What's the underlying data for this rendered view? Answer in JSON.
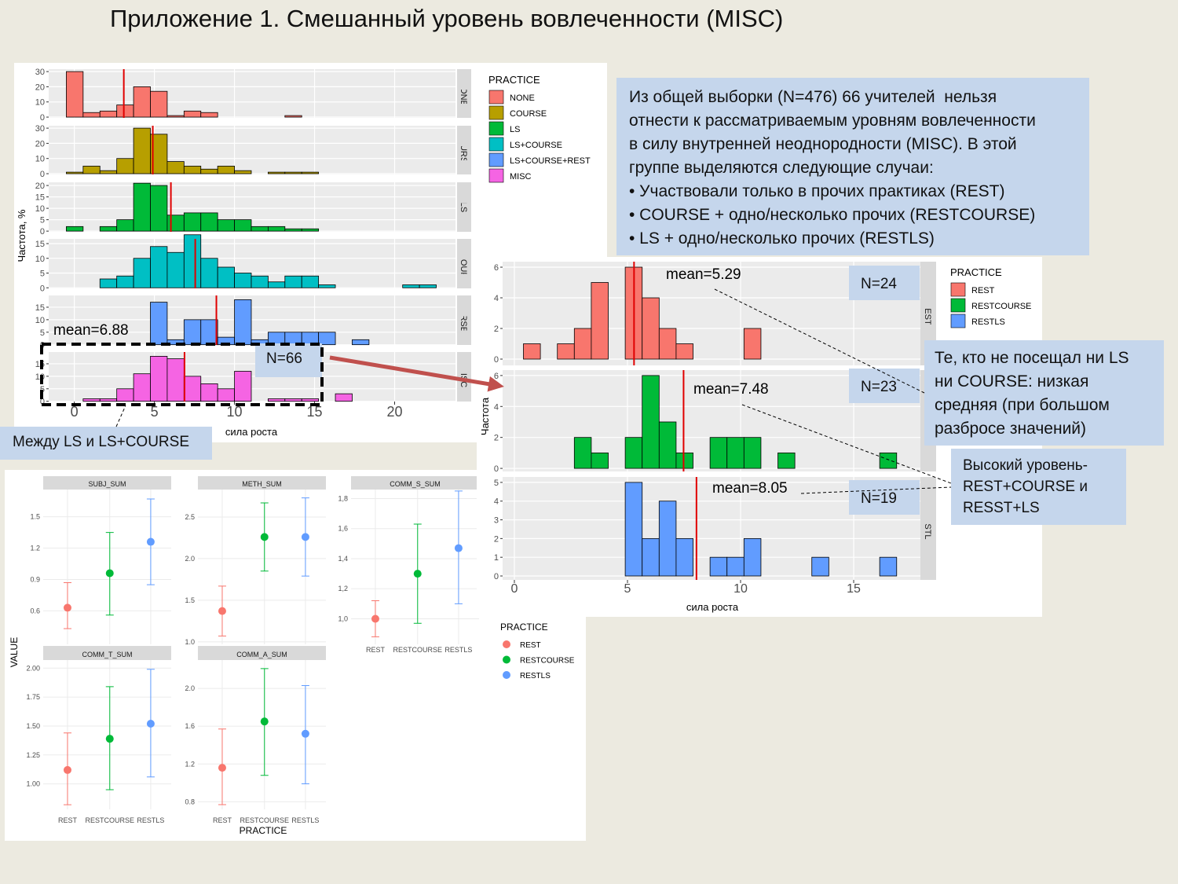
{
  "title": "Приложение 1. Смешанный уровень вовлеченности (MISC)",
  "summary": {
    "lines": [
      "Из общей выборки (N=476) 66 учителей  нельзя",
      "отнести к рассматриваемым уровням вовлеченности",
      "в силу внутренней неоднородности (MISC). В этой",
      "группе выделяются следующие случаи:",
      "• Участвовали только в прочих практиках (REST)",
      "• COURSE + одно/несколько прочих (RESTCOURSE)",
      "• LS + одно/несколько прочих (RESTLS)"
    ]
  },
  "callouts": {
    "between": "Между LS и LS+COURSE",
    "misc_n": "N=66",
    "low": {
      "lines": [
        "Те, кто не посещал ни LS",
        "ни COURSE: низкая",
        "средняя (при большом",
        "разбросе значений)"
      ]
    },
    "high": {
      "lines": [
        "Высокий уровень-",
        "REST+COURSE и",
        "RESST+LS"
      ]
    }
  },
  "chart_data": [
    {
      "type": "histogram",
      "ylabel": "Частота, %",
      "xlabel": "сила роста",
      "legend_title": "PRACTICE",
      "grid": true,
      "bins": [
        -0.5,
        0.55,
        1.6,
        2.65,
        3.7,
        4.75,
        5.8,
        6.85,
        7.9,
        8.95,
        10,
        11.05,
        12.1,
        13.15,
        14.2,
        15.25,
        16.3,
        17.35,
        18.4,
        19.45,
        20.5,
        21.55,
        22.6,
        23.65
      ],
      "xlim": [
        -1.6,
        23.8
      ],
      "xticks": [
        0,
        5,
        10,
        15,
        20
      ],
      "facets": [
        {
          "name": "NONE",
          "color": "#F8766D",
          "ylim": [
            -0.5,
            31.6
          ],
          "yticks": [
            0,
            10,
            20,
            30
          ],
          "mean": 3.09,
          "counts": [
            30,
            3,
            4,
            8,
            20,
            17,
            1,
            4,
            3,
            0,
            0,
            0,
            0,
            1,
            0,
            0,
            0,
            0,
            0,
            0,
            0,
            0,
            0
          ]
        },
        {
          "name": "COURSE",
          "color": "#B79F00",
          "ylim": [
            -0.5,
            31.6
          ],
          "yticks": [
            0,
            10,
            20,
            30
          ],
          "mean": 4.9,
          "counts": [
            1,
            5,
            2,
            10,
            30,
            26,
            8,
            5,
            3,
            5,
            2,
            0,
            1,
            1,
            1,
            0,
            0,
            0,
            0,
            0,
            0,
            0,
            0
          ]
        },
        {
          "name": "LS",
          "color": "#00BA38",
          "ylim": [
            -0.3,
            21.4
          ],
          "yticks": [
            0,
            5,
            10,
            15,
            20
          ],
          "mean": 6.03,
          "counts": [
            2,
            0,
            2,
            5,
            21,
            20,
            7,
            8,
            8,
            5,
            5,
            2,
            2,
            1,
            1,
            0,
            0,
            0,
            0,
            0,
            0,
            0,
            0
          ]
        },
        {
          "name": "LS+COURSE",
          "color": "#00BFC4",
          "ylim": [
            -0.2,
            16.6
          ],
          "yticks": [
            0,
            5,
            10,
            15
          ],
          "mean": 7.55,
          "counts": [
            0,
            0,
            3,
            4,
            10,
            14,
            12,
            18,
            10,
            7,
            5,
            4,
            2,
            4,
            4,
            1,
            0,
            0,
            0,
            0,
            1,
            1,
            0
          ]
        },
        {
          "name": "LS+COURSE+REST",
          "color": "#619CFF",
          "ylim": [
            -0.1,
            19.7
          ],
          "yticks": [
            0,
            5,
            10,
            15
          ],
          "mean": 8.87,
          "counts": [
            0,
            0,
            0,
            0,
            0,
            17,
            2,
            10,
            10,
            3,
            18,
            2,
            5,
            5,
            5,
            5,
            0,
            2,
            0,
            0,
            0,
            0,
            0
          ]
        },
        {
          "name": "MISC",
          "color": "#F564E3",
          "ylim": [
            -0.1,
            19.7
          ],
          "yticks": [
            0,
            5,
            10,
            15
          ],
          "mean": 6.88,
          "mean_label": "mean=6.88",
          "counts": [
            0,
            1,
            1,
            5,
            11,
            18,
            17,
            10,
            7,
            5,
            12,
            0,
            1,
            1,
            1,
            0,
            3,
            0,
            0,
            0,
            0,
            0,
            0
          ]
        }
      ]
    },
    {
      "type": "histogram",
      "ylabel": "Частота",
      "xlabel": "сила роста",
      "legend_title": "PRACTICE",
      "grid": true,
      "bins": [
        0.4,
        1.15,
        1.9,
        2.65,
        3.4,
        4.15,
        4.9,
        5.65,
        6.4,
        7.15,
        7.9,
        8.65,
        9.4,
        10.15,
        10.9,
        11.65,
        12.4,
        13.15,
        13.9,
        14.65,
        15.4,
        16.15,
        16.9,
        17.65
      ],
      "xlim": [
        -0.52,
        17.95
      ],
      "xticks": [
        0,
        5,
        10,
        15
      ],
      "facets": [
        {
          "name": "REST",
          "color": "#F8766D",
          "ylim": [
            -0.41,
            6.36
          ],
          "yticks": [
            0,
            2,
            4,
            6
          ],
          "mean": 5.29,
          "mean_label": "mean=5.29",
          "n_label": "N=24",
          "counts": [
            1,
            0,
            1,
            2,
            5,
            0,
            6,
            4,
            2,
            1,
            0,
            0,
            0,
            2,
            0,
            0,
            0,
            0,
            0,
            0,
            0,
            0,
            0
          ]
        },
        {
          "name": "RESTCOURSE",
          "color": "#00BA38",
          "ylim": [
            -0.2,
            6.35
          ],
          "yticks": [
            0,
            2,
            4,
            6
          ],
          "mean": 7.48,
          "mean_label": "mean=7.48",
          "n_label": "N=23",
          "counts": [
            0,
            0,
            0,
            2,
            1,
            0,
            2,
            6,
            3,
            1,
            0,
            2,
            2,
            2,
            0,
            1,
            0,
            0,
            0,
            0,
            0,
            1,
            0
          ]
        },
        {
          "name": "RESTLS",
          "color": "#619CFF",
          "ylim": [
            -0.21,
            5.29
          ],
          "yticks": [
            0,
            1,
            2,
            3,
            4,
            5
          ],
          "mean": 8.05,
          "mean_label": "mean=8.05",
          "n_label": "N=19",
          "counts": [
            0,
            0,
            0,
            0,
            0,
            0,
            5,
            2,
            4,
            2,
            0,
            1,
            1,
            2,
            0,
            0,
            0,
            1,
            0,
            0,
            0,
            1,
            0
          ]
        }
      ]
    },
    {
      "type": "pointrange",
      "ylabel": "VALUE",
      "xlabel": "PRACTICE",
      "legend_title": "PRACTICE",
      "grid": true,
      "categories": [
        "REST",
        "RESTCOURSE",
        "RESTLS"
      ],
      "colors": [
        "#F8766D",
        "#00BA38",
        "#619CFF"
      ],
      "panels": [
        {
          "name": "SUBJ_SUM",
          "ylim": [
            0.28,
            1.76
          ],
          "yticks": [
            0.6,
            0.9,
            1.2,
            1.5
          ],
          "values": [
            0.63,
            0.96,
            1.26
          ],
          "low": [
            0.43,
            0.56,
            0.85
          ],
          "high": [
            0.87,
            1.35,
            1.67
          ]
        },
        {
          "name": "METH_SUM",
          "ylim": [
            0.97,
            2.83
          ],
          "yticks": [
            {
              "value": 1,
              "label": "1.0"
            },
            1.5,
            {
              "value": 2,
              "label": "2.0"
            },
            2.5
          ],
          "values": [
            1.37,
            2.26,
            2.26
          ],
          "low": [
            1.07,
            1.85,
            1.79
          ],
          "high": [
            1.67,
            2.67,
            2.73
          ]
        },
        {
          "name": "COMM_S_SUM",
          "ylim": [
            0.83,
            1.86
          ],
          "yticks": [
            {
              "value": 1,
              "label": "1,0"
            },
            {
              "value": 1.2,
              "label": "1,2"
            },
            {
              "value": 1.4,
              "label": "1,4"
            },
            {
              "value": 1.6,
              "label": "1,6"
            },
            {
              "value": 1.8,
              "label": "1,8"
            }
          ],
          "values": [
            1,
            1.3,
            1.47
          ],
          "low": [
            0.88,
            0.97,
            1.1
          ],
          "high": [
            1.12,
            1.63,
            1.85
          ]
        },
        {
          "name": "COMM_T_SUM",
          "ylim": [
            0.78,
            2.07
          ],
          "yticks": [
            {
              "value": 1,
              "label": "1.00"
            },
            1.25,
            {
              "value": 1.5,
              "label": "1.50"
            },
            1.75,
            {
              "value": 2,
              "label": "2.00"
            }
          ],
          "values": [
            1.12,
            1.39,
            1.52
          ],
          "low": [
            0.82,
            0.95,
            1.06
          ],
          "high": [
            1.44,
            1.84,
            1.99
          ]
        },
        {
          "name": "COMM_A_SUM",
          "ylim": [
            0.72,
            2.3
          ],
          "yticks": [
            0.8,
            1.2,
            1.6,
            {
              "value": 2,
              "label": "2.0"
            }
          ],
          "values": [
            1.16,
            1.65,
            1.52
          ],
          "low": [
            0.77,
            1.08,
            0.99
          ],
          "high": [
            1.57,
            2.21,
            2.03
          ]
        }
      ]
    }
  ]
}
